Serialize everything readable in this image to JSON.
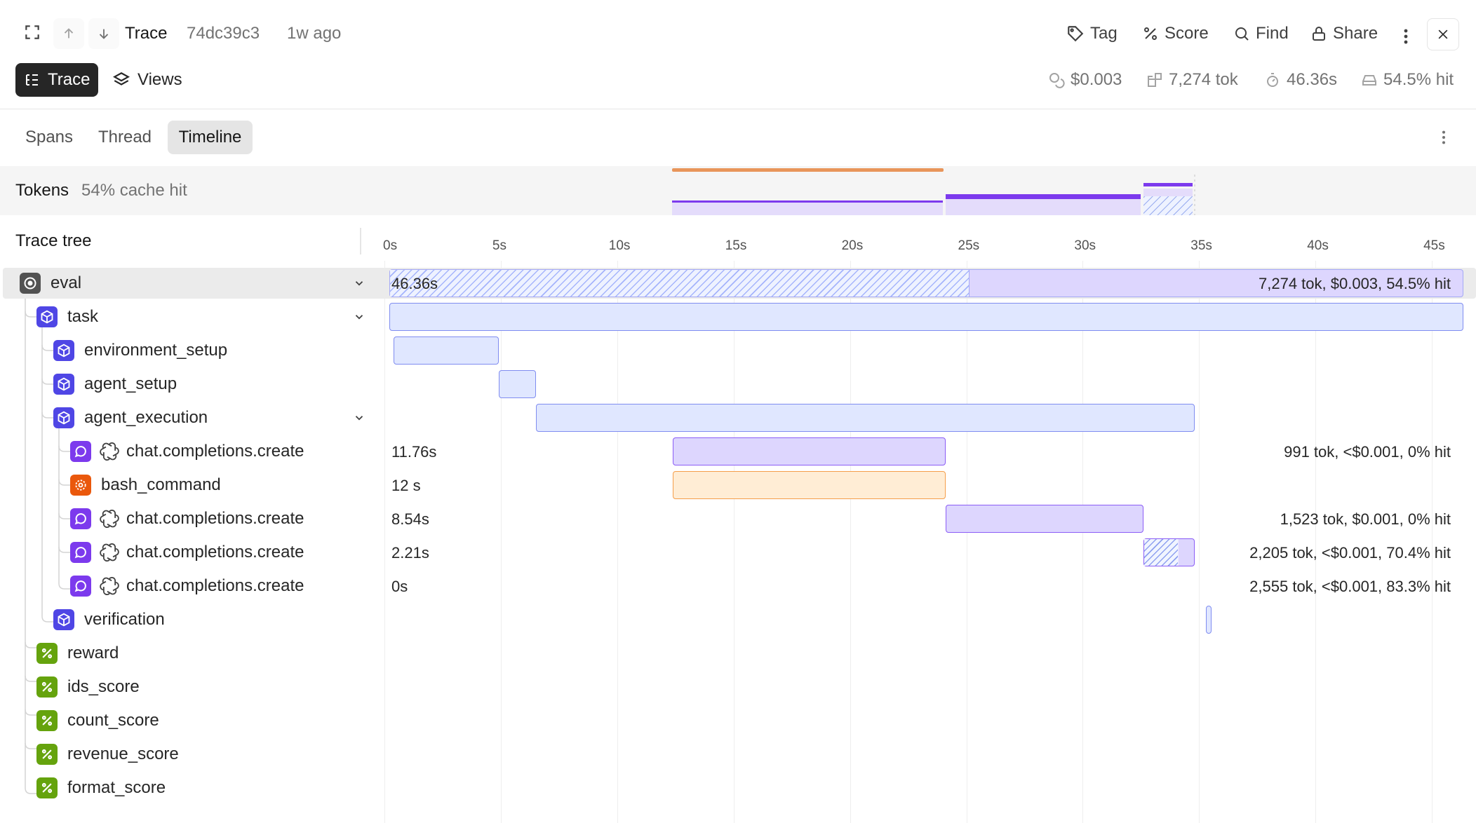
{
  "header": {
    "title": "Trace",
    "trace_id": "74dc39c3",
    "age": "1w ago",
    "actions": {
      "tag": "Tag",
      "score": "Score",
      "find": "Find",
      "share": "Share"
    }
  },
  "toolbar": {
    "trace_label": "Trace",
    "views_label": "Views",
    "stats": {
      "cost": "$0.003",
      "tokens": "7,274 tok",
      "duration": "46.36s",
      "cache": "54.5% hit"
    }
  },
  "tabs": {
    "spans": "Spans",
    "thread": "Thread",
    "timeline": "Timeline",
    "active": "Timeline"
  },
  "tokens_band": {
    "label": "Tokens",
    "cache": "54% cache hit"
  },
  "tree": {
    "header": "Trace tree",
    "nodes": [
      {
        "label": "eval",
        "kind": "eval"
      },
      {
        "label": "task",
        "kind": "task"
      },
      {
        "label": "environment_setup",
        "kind": "task"
      },
      {
        "label": "agent_setup",
        "kind": "task"
      },
      {
        "label": "agent_execution",
        "kind": "task"
      },
      {
        "label": "chat.completions.create",
        "kind": "llm"
      },
      {
        "label": "bash_command",
        "kind": "tool"
      },
      {
        "label": "chat.completions.create",
        "kind": "llm"
      },
      {
        "label": "chat.completions.create",
        "kind": "llm"
      },
      {
        "label": "chat.completions.create",
        "kind": "llm"
      },
      {
        "label": "verification",
        "kind": "task"
      },
      {
        "label": "reward",
        "kind": "score"
      },
      {
        "label": "ids_score",
        "kind": "score"
      },
      {
        "label": "count_score",
        "kind": "score"
      },
      {
        "label": "revenue_score",
        "kind": "score"
      },
      {
        "label": "format_score",
        "kind": "score"
      }
    ]
  },
  "timeline": {
    "ticks": [
      "0s",
      "5s",
      "10s",
      "15s",
      "20s",
      "25s",
      "30s",
      "35s",
      "40s",
      "45s"
    ],
    "duration_label": "46.36s",
    "rows": [
      {
        "start_s": 0.2,
        "end_s": 46.36,
        "style": "eval",
        "cached_until_s": 25.1,
        "left_text": "46.36s",
        "right_text": "7,274 tok, $0.003, 54.5% hit"
      },
      {
        "start_s": 0.2,
        "end_s": 46.36,
        "style": "task"
      },
      {
        "start_s": 0.4,
        "end_s": 4.9,
        "style": "task"
      },
      {
        "start_s": 4.9,
        "end_s": 6.5,
        "style": "task"
      },
      {
        "start_s": 6.5,
        "end_s": 34.8,
        "style": "task"
      },
      {
        "start_s": 12.4,
        "end_s": 24.1,
        "style": "llm",
        "left_text": "11.76s",
        "right_text": "991 tok, <$0.001, 0% hit"
      },
      {
        "start_s": 12.4,
        "end_s": 24.1,
        "style": "tool",
        "left_text": "12 s"
      },
      {
        "start_s": 24.1,
        "end_s": 32.6,
        "style": "llm",
        "left_text": "8.54s",
        "right_text": "1,523 tok, $0.001, 0% hit"
      },
      {
        "start_s": 32.6,
        "end_s": 34.8,
        "style": "llm-cached",
        "left_text": "2.21s",
        "right_text": "2,205 tok, <$0.001, 70.4% hit"
      },
      {
        "start_s": 34.8,
        "end_s": 34.8,
        "style": "none",
        "left_text": "0s",
        "right_text": "2,555 tok, <$0.001, 83.3% hit"
      },
      {
        "start_s": 35.3,
        "end_s": 35.5,
        "style": "task"
      }
    ]
  }
}
